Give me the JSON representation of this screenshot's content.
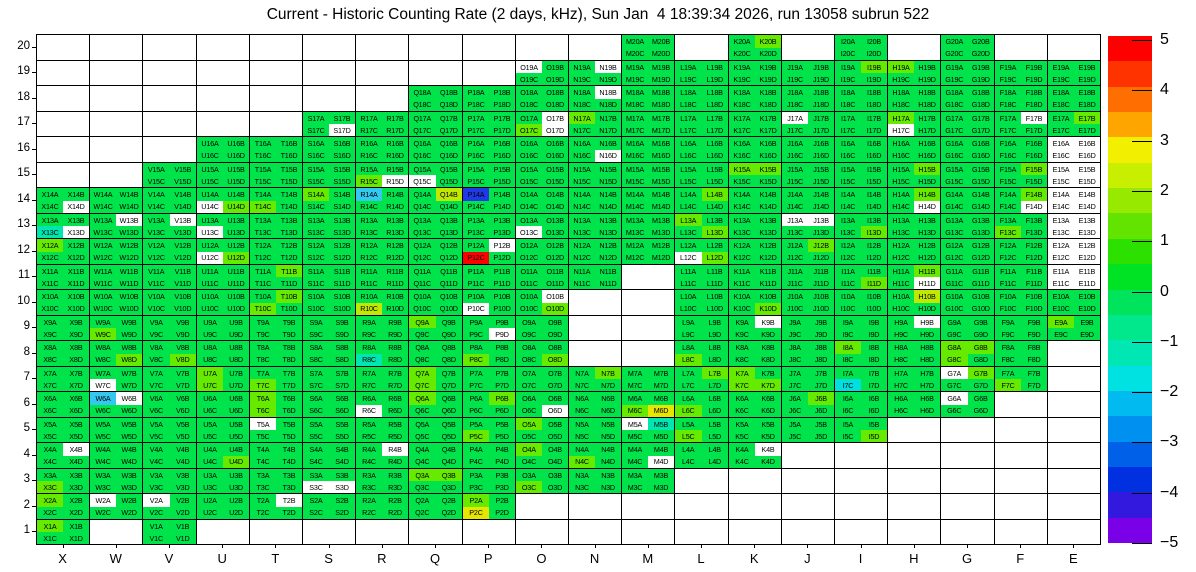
{
  "title": "Current - Historic Counting Rate (2 days, kHz), Sun Jan  4 18:39:34 2026, run 13058 subrun 522",
  "chart_data": {
    "type": "heatmap",
    "title": "Current - Historic Counting Rate (2 days, kHz), Sun Jan  4 18:39:34 2026, run 13058 subrun 522",
    "x_categories": [
      "X",
      "W",
      "V",
      "U",
      "T",
      "S",
      "R",
      "Q",
      "P",
      "O",
      "N",
      "M",
      "L",
      "K",
      "J",
      "I",
      "H",
      "G",
      "F",
      "E"
    ],
    "y_categories": [
      20,
      19,
      18,
      17,
      16,
      15,
      14,
      13,
      12,
      11,
      10,
      9,
      8,
      7,
      6,
      5,
      4,
      3,
      2,
      1
    ],
    "cell_sub_labels": [
      "A",
      "B",
      "C",
      "D"
    ],
    "label_format": "{column}{row}{sub}",
    "units": "kHz deviation (current - historic)",
    "grid_on": true,
    "colorbar": {
      "range_min": -5,
      "range_max": 5,
      "tick_labels": [
        "5",
        "4",
        "3",
        "2",
        "1",
        "0",
        "−1",
        "−2",
        "−3",
        "−4",
        "−5"
      ],
      "band_colors_top_to_bottom": [
        "#ff0000",
        "#ff3300",
        "#ff6e00",
        "#ffa500",
        "#f2ef00",
        "#c8ef00",
        "#98e900",
        "#62e400",
        "#2ce000",
        "#00e224",
        "#00e35c",
        "#00e78c",
        "#00e7b4",
        "#00e2e2",
        "#00baf0",
        "#0090f0",
        "#0060e8",
        "#0030e0",
        "#3318dd",
        "#7a00e8"
      ]
    },
    "value_classes": {
      "g": {
        "color": "#00e34a",
        "approx_value": "0"
      },
      "lg": {
        "color": "#66ea00",
        "approx_value": "+1"
      },
      "ch": {
        "color": "#c0e800",
        "approx_value": "+2"
      },
      "y": {
        "color": "#e6e600",
        "approx_value": "+2.7"
      },
      "t": {
        "color": "#00e6b0",
        "approx_value": "-1.2"
      },
      "c": {
        "color": "#00e0e0",
        "approx_value": "-1.8"
      },
      "sb": {
        "color": "#33c8f0",
        "approx_value": "-2.3"
      },
      "b": {
        "color": "#2038e8",
        "approx_value": "-3.8"
      },
      "r": {
        "color": "#ff0000",
        "approx_value": "+5"
      },
      "w": {
        "color": "#ffffff",
        "approx_value": "no data"
      }
    },
    "default_class": "g",
    "coverage_row_ranges": {
      "X": [
        [
          14,
          1
        ]
      ],
      "W": [
        [
          14,
          2
        ]
      ],
      "V": [
        [
          15,
          1
        ]
      ],
      "U": [
        [
          16,
          2
        ]
      ],
      "T": [
        [
          16,
          2
        ]
      ],
      "S": [
        [
          17,
          2
        ]
      ],
      "R": [
        [
          17,
          2
        ]
      ],
      "Q": [
        [
          18,
          2
        ]
      ],
      "P": [
        [
          18,
          2
        ]
      ],
      "O": [
        [
          19,
          3
        ]
      ],
      "N": [
        [
          19,
          11
        ],
        [
          7,
          3
        ]
      ],
      "M": [
        [
          20,
          12
        ],
        [
          7,
          3
        ]
      ],
      "L": [
        [
          19,
          4
        ]
      ],
      "K": [
        [
          20,
          4
        ]
      ],
      "J": [
        [
          19,
          5
        ]
      ],
      "I": [
        [
          20,
          5
        ]
      ],
      "H": [
        [
          19,
          6
        ]
      ],
      "G": [
        [
          20,
          6
        ]
      ],
      "F": [
        [
          19,
          7
        ]
      ],
      "E": [
        [
          19,
          9
        ]
      ]
    },
    "cell_class_overrides": {
      "K20B": "lg",
      "O19A": "w",
      "N19B": "w",
      "I19B": "lg",
      "H19A": "lg",
      "N18B": "w",
      "S17D": "w",
      "O17B": "w",
      "O17C": "lg",
      "O17D": "w",
      "N17A": "lg",
      "J17A": "w",
      "H17A": "lg",
      "H17C": "w",
      "F17B": "w",
      "E17B": "lg",
      "N16D": "w",
      "E16A": "w",
      "E16B": "w",
      "E16C": "w",
      "E16D": "w",
      "R15C": "lg",
      "R15D": "w",
      "Q15C": "w",
      "K15A": "lg",
      "K15B": "lg",
      "H15B": "lg",
      "F15B": "lg",
      "E15A": "w",
      "E15B": "w",
      "E15C": "w",
      "E15D": "w",
      "X14D": "w",
      "U14C": "w",
      "U14D": "lg",
      "T14C": "lg",
      "S14A": "lg",
      "R14A": "sb",
      "Q14B": "ch",
      "P14A": "b",
      "L14B": "lg",
      "H14B": "lg",
      "H14D": "w",
      "F14B": "lg",
      "F14D": "w",
      "E14A": "w",
      "E14B": "w",
      "E14C": "w",
      "E14D": "w",
      "X13C": "t",
      "X13D": "w",
      "W13B": "w",
      "V13B": "w",
      "U13C": "w",
      "O13C": "w",
      "L13A": "lg",
      "L13D": "lg",
      "J13A": "w",
      "J13B": "w",
      "I13D": "lg",
      "F13C": "lg",
      "E13A": "w",
      "E13B": "w",
      "E13C": "w",
      "E13D": "w",
      "X12A": "lg",
      "U12C": "w",
      "U12D": "lg",
      "P12B": "w",
      "P12C": "r",
      "L12C": "w",
      "L12D": "lg",
      "J12B": "lg",
      "E12A": "w",
      "E12B": "w",
      "E12C": "w",
      "E12D": "w",
      "T11B": "lg",
      "I11D": "lg",
      "H11B": "lg",
      "H11D": "w",
      "E11A": "w",
      "E11B": "w",
      "E11C": "w",
      "E11D": "w",
      "T10B": "lg",
      "T10C": "lg",
      "R10C": "ch",
      "P10C": "w",
      "O10B": "w",
      "O10D": "lg",
      "K10D": "lg",
      "H10B": "ch",
      "W9C": "lg",
      "Q9A": "lg",
      "P9D": "w",
      "K9B": "w",
      "H9B": "w",
      "E9A": "lg",
      "W8D": "lg",
      "V8D": "lg",
      "R8C": "t",
      "P8C": "lg",
      "O8D": "lg",
      "L8C": "lg",
      "I8A": "lg",
      "G8A": "lg",
      "G8B": "lg",
      "G8C": "lg",
      "W7C": "w",
      "U7A": "lg",
      "U7C": "lg",
      "T7C": "lg",
      "Q7A": "lg",
      "Q7C": "lg",
      "N7B": "lg",
      "L7B": "lg",
      "K7A": "lg",
      "K7C": "lg",
      "K7D": "lg",
      "I7C": "c",
      "G7A": "w",
      "G7B": "lg",
      "F7C": "lg",
      "W6A": "sb",
      "W6B": "w",
      "T6A": "lg",
      "T6C": "lg",
      "R6C": "w",
      "Q6A": "lg",
      "P6B": "lg",
      "O6D": "w",
      "M6C": "lg",
      "M6D": "y",
      "L6C": "lg",
      "J6B": "lg",
      "G6A": "w",
      "T5A": "w",
      "P5C": "lg",
      "O5A": "lg",
      "M5A": "w",
      "M5B": "t",
      "L5C": "lg",
      "I5D": "lg",
      "X4B": "w",
      "U4D": "lg",
      "R4B": "w",
      "O4A": "lg",
      "N4C": "lg",
      "M4D": "w",
      "K4B": "w",
      "X3C": "lg",
      "S3C": "w",
      "S3D": "w",
      "Q3A": "lg",
      "Q3B": "lg",
      "O3C": "lg",
      "X2A": "lg",
      "W2A": "w",
      "V2A": "w",
      "T2B": "w",
      "P2A": "lg",
      "P2C": "y",
      "X1A": "lg"
    }
  }
}
